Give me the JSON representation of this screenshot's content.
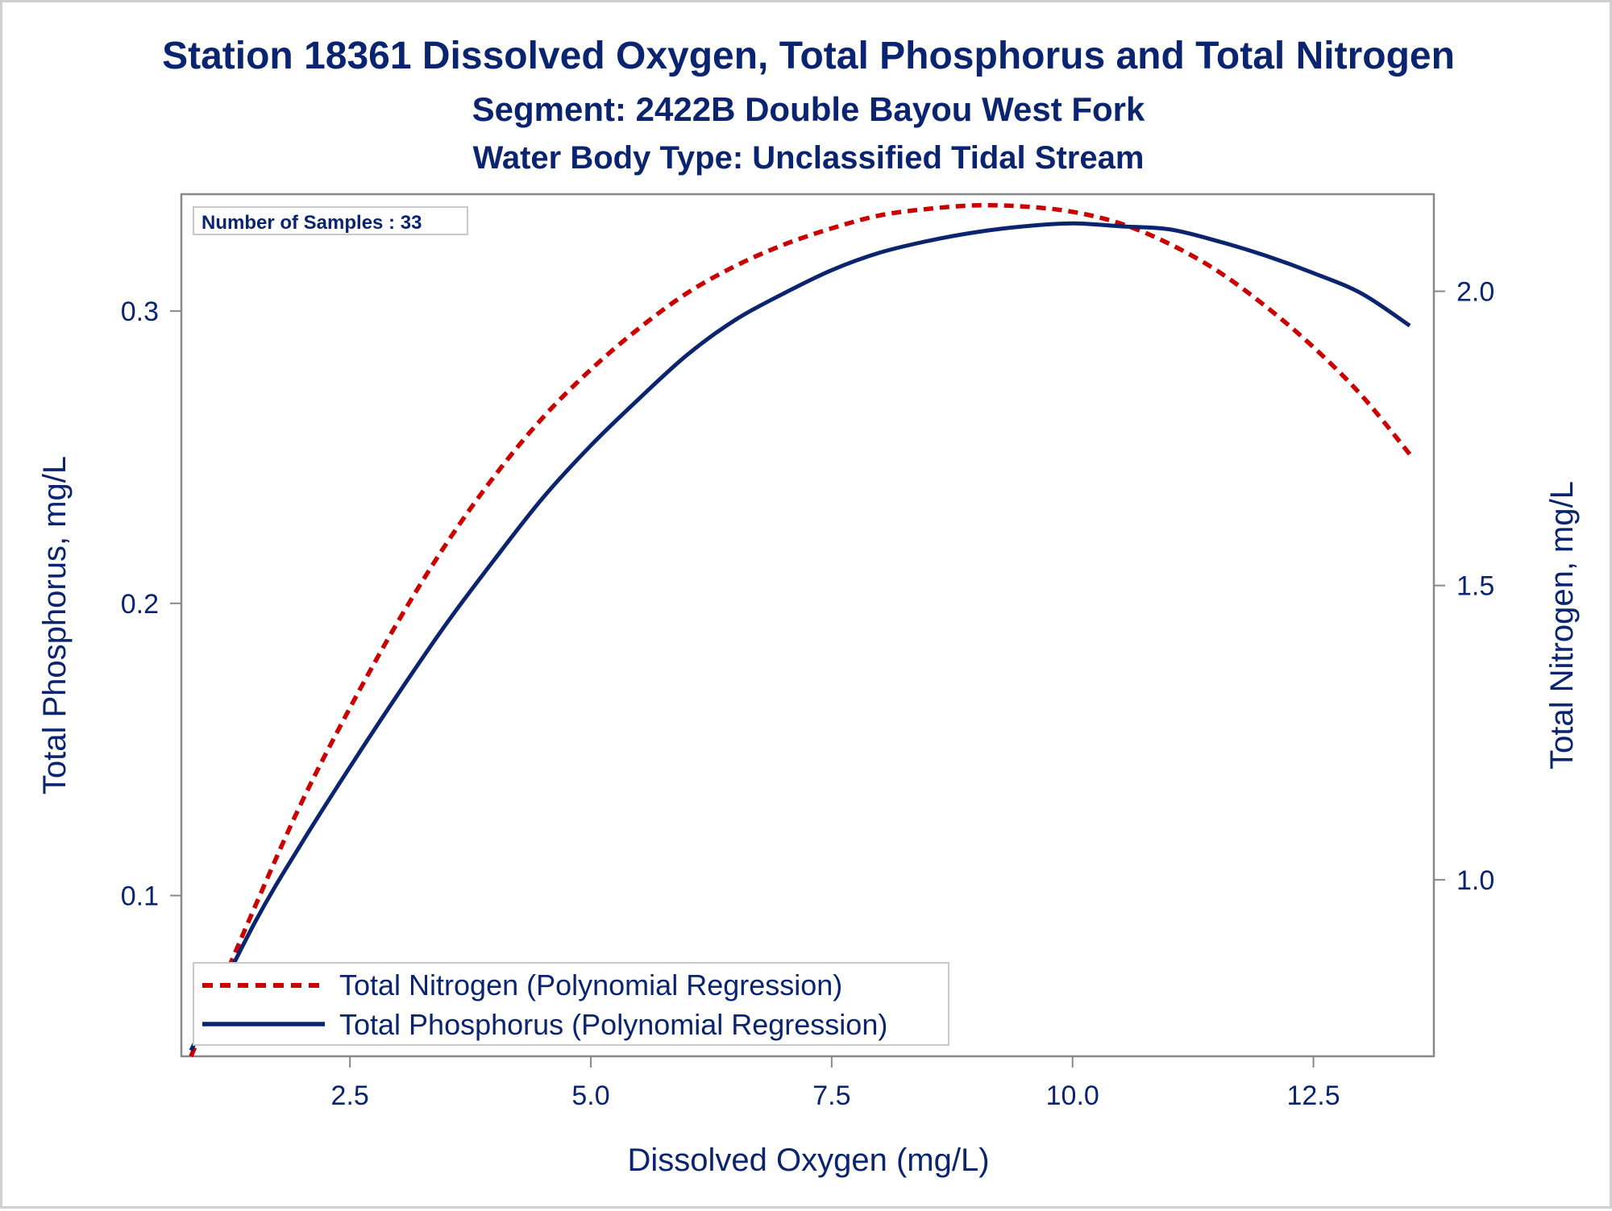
{
  "chart_data": {
    "type": "line",
    "title": "Station 18361  Dissolved Oxygen, Total Phosphorus and Total Nitrogen",
    "subtitle": "Segment: 2422B  Double Bayou West Fork",
    "subtitle2": "Water Body Type: Unclassified Tidal Stream",
    "xlabel": "Dissolved Oxygen (mg/L)",
    "ylabel_left": "Total Phosphorus, mg/L",
    "ylabel_right": "Total Nitrogen, mg/L",
    "inset_label": "Number of Samples : 33",
    "xlim": [
      0.75,
      13.75
    ],
    "ylim_left": [
      0.045,
      0.34
    ],
    "ylim_right": [
      0.7,
      2.165
    ],
    "x_ticks": [
      2.5,
      5.0,
      7.5,
      10.0,
      12.5
    ],
    "x_tick_labels": [
      "2.5",
      "5.0",
      "7.5",
      "10.0",
      "12.5"
    ],
    "y_left_ticks": [
      0.1,
      0.2,
      0.3
    ],
    "y_left_tick_labels": [
      "0.1",
      "0.2",
      "0.3"
    ],
    "y_right_ticks": [
      1.0,
      1.5,
      2.0
    ],
    "y_right_tick_labels": [
      "1.0",
      "1.5",
      "2.0"
    ],
    "legend_position": "bottom-left",
    "grid": false,
    "series": [
      {
        "name": "Total Nitrogen (Polynomial Regression)",
        "axis": "right",
        "color": "#cc0000",
        "style": "dashed",
        "x": [
          0.85,
          1.5,
          2.0,
          2.5,
          3.0,
          3.5,
          4.0,
          4.5,
          5.0,
          5.5,
          6.0,
          6.5,
          7.0,
          7.5,
          8.0,
          8.5,
          9.0,
          9.5,
          10.0,
          10.5,
          11.0,
          11.5,
          12.0,
          12.5,
          13.0,
          13.5
        ],
        "y": [
          0.7,
          0.949,
          1.132,
          1.292,
          1.439,
          1.571,
          1.686,
          1.785,
          1.867,
          1.937,
          1.997,
          2.043,
          2.079,
          2.107,
          2.129,
          2.14,
          2.146,
          2.144,
          2.135,
          2.115,
          2.081,
          2.035,
          1.975,
          1.905,
          1.823,
          1.723
        ]
      },
      {
        "name": "Total Phosphorus (Polynomial Regression)",
        "axis": "left",
        "color": "#0a2470",
        "style": "solid",
        "x": [
          0.85,
          1.5,
          2.0,
          2.5,
          3.0,
          3.5,
          4.0,
          4.5,
          5.0,
          5.5,
          6.0,
          6.5,
          7.0,
          7.5,
          8.0,
          8.5,
          9.0,
          9.5,
          10.0,
          10.5,
          11.0,
          11.5,
          12.0,
          12.5,
          13.0,
          13.5
        ],
        "y": [
          0.047,
          0.09,
          0.118,
          0.144,
          0.169,
          0.193,
          0.215,
          0.236,
          0.254,
          0.27,
          0.285,
          0.297,
          0.306,
          0.314,
          0.32,
          0.324,
          0.327,
          0.329,
          0.33,
          0.329,
          0.328,
          0.324,
          0.319,
          0.313,
          0.306,
          0.295
        ]
      }
    ]
  }
}
